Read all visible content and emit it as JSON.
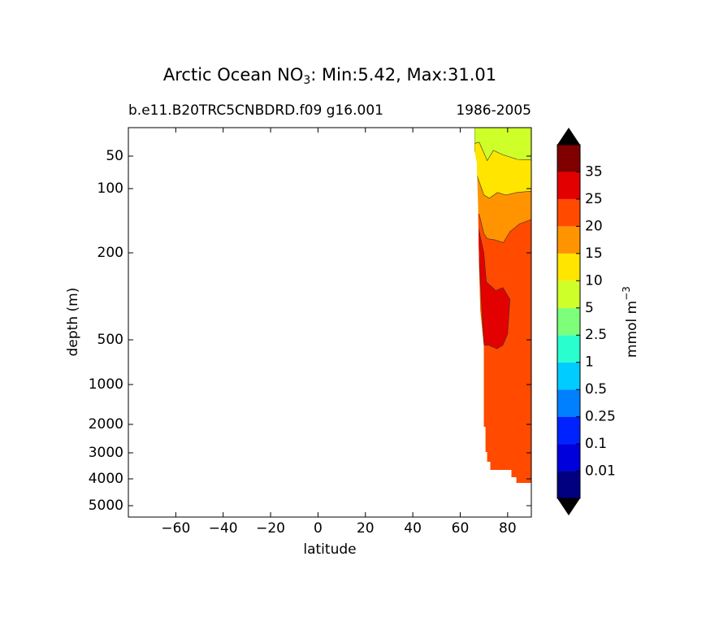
{
  "chart_data": {
    "type": "filled-contour",
    "title": "Arctic Ocean NO",
    "title_sub": "3",
    "title_rest": ": Min:5.42, Max:31.01",
    "subtitle_left": "b.e11.B20TRC5CNBDRD.f09 g16.001",
    "subtitle_right": "1986-2005",
    "x_label": "latitude",
    "y_label": "depth (m)",
    "xlim": [
      -80,
      90
    ],
    "xticks": [
      {
        "value": -60,
        "label": "−60"
      },
      {
        "value": -40,
        "label": "−40"
      },
      {
        "value": -20,
        "label": "−20"
      },
      0,
      20,
      40,
      60,
      80
    ],
    "ylim": [
      5,
      5500
    ],
    "yticks": [
      50,
      100,
      200,
      500,
      1000,
      2000,
      3000,
      4000,
      5000
    ],
    "envelope": {
      "x": [
        66,
        90,
        90,
        83.7,
        83.7,
        81.6,
        81.6,
        72.7,
        72.7,
        71.4,
        71.4,
        70.7,
        70.7,
        70,
        70,
        68.5,
        68,
        67.5,
        67,
        66
      ],
      "y": [
        5,
        5,
        4150,
        4150,
        3938,
        3938,
        3656,
        3656,
        3344,
        3344,
        2971,
        2971,
        2086,
        2086,
        560,
        400,
        250,
        120,
        60,
        41
      ]
    },
    "regions": [
      {
        "level": 5,
        "x": [
          66,
          90,
          90,
          66
        ],
        "y": [
          5,
          5,
          5500,
          5500
        ]
      },
      {
        "level": 10,
        "x": [
          66,
          68,
          70,
          71.4,
          74,
          78,
          84,
          90,
          90,
          66
        ],
        "y": [
          30,
          28,
          45,
          57,
          41,
          48,
          55,
          56,
          5500,
          5500
        ]
      },
      {
        "level": 15,
        "x": [
          66,
          67,
          70,
          72.3,
          75.7,
          79.2,
          84,
          90,
          90,
          66
        ],
        "y": [
          79,
          79,
          110,
          115,
          106,
          110,
          106,
          104,
          5500,
          5500
        ]
      },
      {
        "level": 20,
        "x": [
          66,
          68,
          70,
          71.4,
          74.8,
          78.2,
          81,
          85,
          90,
          90,
          66
        ],
        "y": [
          140,
          140,
          170,
          178,
          180,
          184,
          167,
          155,
          148,
          5500,
          5500
        ]
      },
      {
        "level": 25,
        "x": [
          67.6,
          70,
          71,
          75,
          78,
          81,
          80,
          78,
          75.5,
          72,
          70,
          69.5,
          68.5,
          67.8
        ],
        "y": [
          160,
          200,
          300,
          330,
          320,
          360,
          480,
          560,
          600,
          560,
          560,
          450,
          300,
          200
        ]
      }
    ],
    "colorbar": {
      "label": "mmol m",
      "label_sup": "−3",
      "levels": [
        0.01,
        0.1,
        0.25,
        0.5,
        1,
        2.5,
        5,
        10,
        15,
        20,
        25,
        35
      ],
      "colors": [
        "#000080",
        "#0000dd",
        "#0022ff",
        "#0080ff",
        "#00ccff",
        "#29ffce",
        "#7dff7a",
        "#ceff29",
        "#ffe500",
        "#ff9400",
        "#ff4a00",
        "#e30000",
        "#800000"
      ],
      "extend_color": "#000000"
    }
  }
}
